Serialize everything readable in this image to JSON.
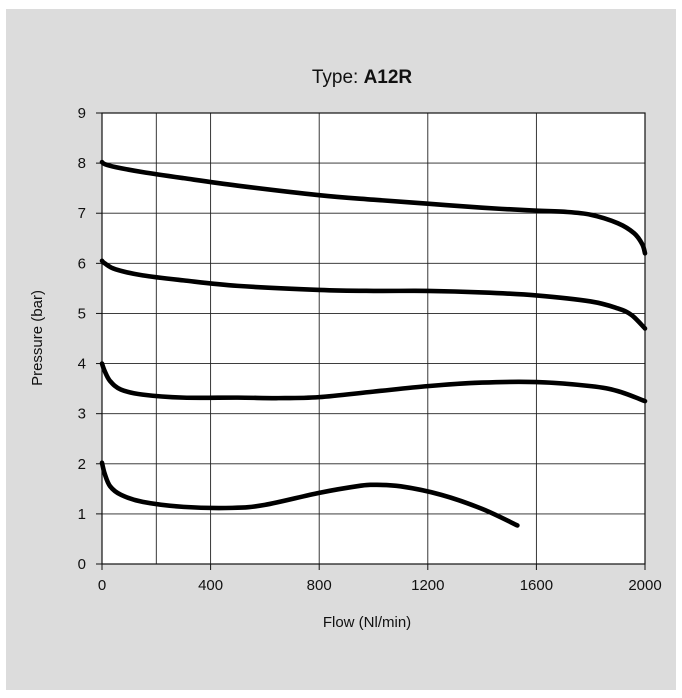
{
  "chart_data": {
    "type": "line",
    "title_prefix": "Type: ",
    "title_emphasis": "A12R",
    "xlabel": "Flow (Nl/min)",
    "ylabel": "Pressure (bar)",
    "xlim": [
      0,
      2000
    ],
    "ylim": [
      0,
      9
    ],
    "x_ticks": [
      0,
      400,
      800,
      1200,
      1600,
      2000
    ],
    "y_ticks": [
      0,
      1,
      2,
      3,
      4,
      5,
      6,
      7,
      8,
      9
    ],
    "x_gridlines": [
      0,
      200,
      400,
      800,
      1200,
      1600,
      2000
    ],
    "y_gridlines": [
      0,
      1,
      2,
      3,
      4,
      5,
      6,
      7,
      8,
      9
    ],
    "grid": true,
    "legend": "none",
    "line_color": "#000000",
    "background_color": "#dcdcdc",
    "plot_color": "#ffffff",
    "series": [
      {
        "x": [
          0,
          10,
          50,
          150,
          300,
          500,
          800,
          1000,
          1200,
          1400,
          1600,
          1700,
          1800,
          1900,
          1960,
          1990,
          2000
        ],
        "y": [
          8.02,
          7.98,
          7.92,
          7.82,
          7.7,
          7.55,
          7.36,
          7.27,
          7.19,
          7.11,
          7.05,
          7.03,
          6.97,
          6.8,
          6.6,
          6.38,
          6.2
        ]
      },
      {
        "x": [
          0,
          10,
          50,
          150,
          300,
          500,
          800,
          1000,
          1200,
          1400,
          1600,
          1800,
          1900,
          1950,
          2000
        ],
        "y": [
          6.05,
          6.0,
          5.88,
          5.76,
          5.66,
          5.55,
          5.47,
          5.45,
          5.45,
          5.42,
          5.36,
          5.24,
          5.1,
          4.97,
          4.7
        ]
      },
      {
        "x": [
          0,
          10,
          30,
          70,
          150,
          300,
          500,
          650,
          800,
          1000,
          1200,
          1400,
          1600,
          1800,
          1900,
          2000
        ],
        "y": [
          4.0,
          3.85,
          3.65,
          3.48,
          3.38,
          3.32,
          3.32,
          3.31,
          3.33,
          3.44,
          3.55,
          3.62,
          3.63,
          3.55,
          3.45,
          3.25
        ]
      },
      {
        "x": [
          0,
          10,
          30,
          70,
          150,
          300,
          480,
          600,
          800,
          950,
          1000,
          1100,
          1250,
          1400,
          1530
        ],
        "y": [
          2.02,
          1.8,
          1.55,
          1.38,
          1.24,
          1.14,
          1.12,
          1.18,
          1.42,
          1.56,
          1.58,
          1.55,
          1.38,
          1.1,
          0.77
        ]
      }
    ]
  }
}
